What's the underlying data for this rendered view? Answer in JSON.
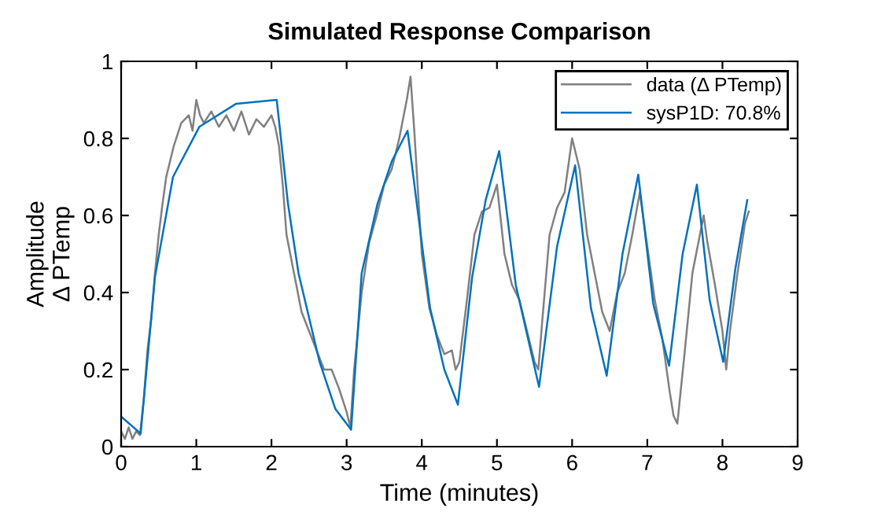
{
  "chart_data": {
    "type": "line",
    "title": "Simulated Response Comparison",
    "xlabel": "Time (minutes)",
    "ylabel": "Amplitude\nΔ PTemp",
    "xlim": [
      0,
      9
    ],
    "ylim": [
      0,
      1
    ],
    "xticks": [
      0,
      1,
      2,
      3,
      4,
      5,
      6,
      7,
      8,
      9
    ],
    "yticks": [
      0,
      0.2,
      0.4,
      0.6,
      0.8,
      1
    ],
    "grid": false,
    "legend": "top right",
    "series": [
      {
        "name": "data (Δ PTemp)",
        "color": "#808080",
        "x": [
          0,
          0.05,
          0.1,
          0.15,
          0.2,
          0.25,
          0.3,
          0.35,
          0.4,
          0.45,
          0.5,
          0.55,
          0.6,
          0.7,
          0.8,
          0.9,
          0.95,
          1.0,
          1.05,
          1.1,
          1.2,
          1.3,
          1.4,
          1.5,
          1.6,
          1.7,
          1.8,
          1.9,
          2.0,
          2.05,
          2.1,
          2.15,
          2.2,
          2.3,
          2.4,
          2.5,
          2.6,
          2.7,
          2.8,
          2.9,
          3.0,
          3.05,
          3.1,
          3.2,
          3.3,
          3.4,
          3.5,
          3.6,
          3.7,
          3.8,
          3.85,
          3.9,
          4.0,
          4.1,
          4.2,
          4.3,
          4.4,
          4.45,
          4.5,
          4.6,
          4.7,
          4.8,
          4.9,
          5.0,
          5.1,
          5.2,
          5.3,
          5.4,
          5.5,
          5.55,
          5.6,
          5.7,
          5.8,
          5.9,
          6.0,
          6.1,
          6.2,
          6.3,
          6.4,
          6.5,
          6.6,
          6.7,
          6.8,
          6.9,
          7.0,
          7.1,
          7.2,
          7.3,
          7.35,
          7.4,
          7.5,
          7.6,
          7.7,
          7.75,
          7.8,
          7.9,
          8.0,
          8.05,
          8.1,
          8.2,
          8.3,
          8.35
        ],
        "values": [
          0.04,
          0.02,
          0.05,
          0.02,
          0.04,
          0.03,
          0.12,
          0.25,
          0.33,
          0.45,
          0.55,
          0.63,
          0.7,
          0.78,
          0.84,
          0.86,
          0.82,
          0.9,
          0.86,
          0.84,
          0.87,
          0.83,
          0.86,
          0.82,
          0.87,
          0.81,
          0.85,
          0.83,
          0.86,
          0.83,
          0.78,
          0.68,
          0.55,
          0.45,
          0.35,
          0.3,
          0.25,
          0.2,
          0.2,
          0.15,
          0.09,
          0.05,
          0.2,
          0.4,
          0.53,
          0.6,
          0.68,
          0.72,
          0.8,
          0.9,
          0.96,
          0.82,
          0.5,
          0.36,
          0.29,
          0.24,
          0.25,
          0.2,
          0.22,
          0.38,
          0.55,
          0.61,
          0.62,
          0.68,
          0.5,
          0.42,
          0.38,
          0.3,
          0.22,
          0.2,
          0.32,
          0.55,
          0.62,
          0.66,
          0.8,
          0.72,
          0.55,
          0.45,
          0.35,
          0.3,
          0.4,
          0.45,
          0.55,
          0.66,
          0.52,
          0.38,
          0.28,
          0.14,
          0.08,
          0.06,
          0.25,
          0.45,
          0.55,
          0.6,
          0.53,
          0.42,
          0.3,
          0.2,
          0.3,
          0.45,
          0.58,
          0.61
        ]
      },
      {
        "name": "sysP1D: 70.8%",
        "color": "#0072bd",
        "x": [
          0,
          0.26,
          0.45,
          0.69,
          1.04,
          1.53,
          2.07,
          2.22,
          2.36,
          2.64,
          2.85,
          3.06,
          3.2,
          3.41,
          3.6,
          3.81,
          4.11,
          4.3,
          4.48,
          4.67,
          4.85,
          5.03,
          5.25,
          5.56,
          5.8,
          6.04,
          6.25,
          6.46,
          6.67,
          6.88,
          7.08,
          7.29,
          7.47,
          7.66,
          7.83,
          8.01,
          8.17,
          8.33
        ],
        "values": [
          0.078,
          0.034,
          0.44,
          0.7,
          0.83,
          0.89,
          0.9,
          0.63,
          0.45,
          0.22,
          0.098,
          0.044,
          0.45,
          0.63,
          0.74,
          0.82,
          0.36,
          0.2,
          0.109,
          0.44,
          0.64,
          0.767,
          0.42,
          0.155,
          0.52,
          0.73,
          0.36,
          0.184,
          0.5,
          0.706,
          0.37,
          0.21,
          0.5,
          0.68,
          0.38,
          0.22,
          0.46,
          0.64
        ]
      }
    ]
  }
}
